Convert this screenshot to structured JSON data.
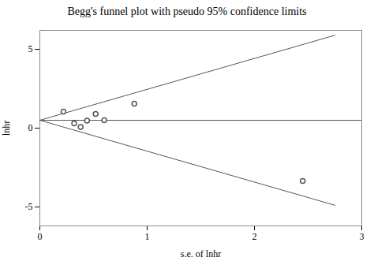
{
  "chart_data": {
    "type": "scatter",
    "title": "Begg's funnel plot with pseudo 95% confidence limits",
    "xlabel": "s.e. of lnhr",
    "ylabel": "lnhr",
    "xlim": [
      0,
      3
    ],
    "ylim": [
      -6.2,
      6.2
    ],
    "xticks": [
      0,
      1,
      2,
      3
    ],
    "yticks": [
      -5,
      0,
      5
    ],
    "grid": false,
    "series": [
      {
        "type": "line",
        "color": "#555555",
        "x": [
          0,
          2.75
        ],
        "values": [
          0.5,
          5.89
        ]
      },
      {
        "type": "line",
        "color": "#555555",
        "x": [
          0,
          2.75
        ],
        "values": [
          0.5,
          -4.89
        ]
      },
      {
        "type": "line",
        "color": "#555555",
        "x": [
          0,
          3
        ],
        "values": [
          0.5,
          0.5
        ]
      },
      {
        "type": "scatter",
        "color": "#555555",
        "marker": "hollow circle",
        "x": [
          0.22,
          0.32,
          0.38,
          0.44,
          0.52,
          0.6,
          0.88,
          2.45
        ],
        "values": [
          1.05,
          0.3,
          0.08,
          0.48,
          0.9,
          0.5,
          1.55,
          -3.35
        ]
      }
    ]
  }
}
